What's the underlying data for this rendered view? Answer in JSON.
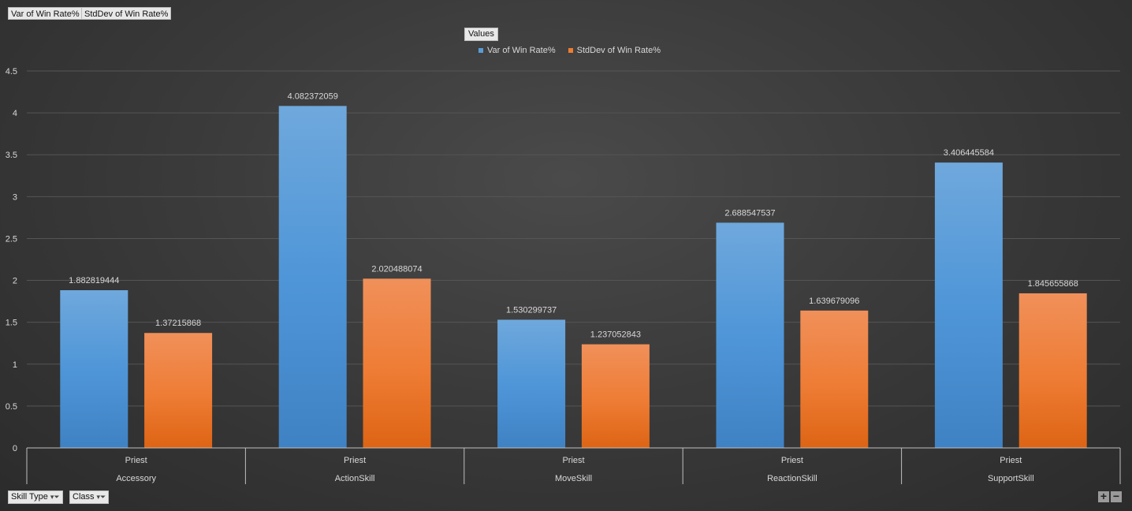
{
  "header": {
    "field_buttons": [
      "Var of Win Rate%",
      "StdDev of Win Rate%"
    ],
    "values_button": "Values"
  },
  "footer": {
    "axis_field_buttons": [
      "Skill Type",
      "Class"
    ]
  },
  "colors": {
    "series1": "#5b9bd5",
    "series2": "#ed7d31"
  },
  "chart_data": {
    "type": "bar",
    "title": "",
    "xlabel": "",
    "ylabel": "",
    "ylim": [
      0,
      4.5
    ],
    "yticks": [
      "0",
      "0.5",
      "1",
      "1.5",
      "2",
      "2.5",
      "3",
      "3.5",
      "4",
      "4.5"
    ],
    "grid": true,
    "legend": "top-center",
    "categories": [
      "Accessory",
      "ActionSkill",
      "MoveSkill",
      "ReactionSkill",
      "SupportSkill"
    ],
    "subcategories": [
      "Priest",
      "Priest",
      "Priest",
      "Priest",
      "Priest"
    ],
    "series": [
      {
        "name": "Var of Win Rate%",
        "values": [
          1.882819444,
          4.082372059,
          1.530299737,
          2.688547537,
          3.406445584
        ],
        "labels": [
          "1.882819444",
          "4.082372059",
          "1.530299737",
          "2.688547537",
          "3.406445584"
        ]
      },
      {
        "name": "StdDev of Win Rate%",
        "values": [
          1.37215868,
          2.020488074,
          1.237052843,
          1.639679096,
          1.845655868
        ],
        "labels": [
          "1.37215868",
          "2.020488074",
          "1.237052843",
          "1.639679096",
          "1.845655868"
        ]
      }
    ]
  }
}
